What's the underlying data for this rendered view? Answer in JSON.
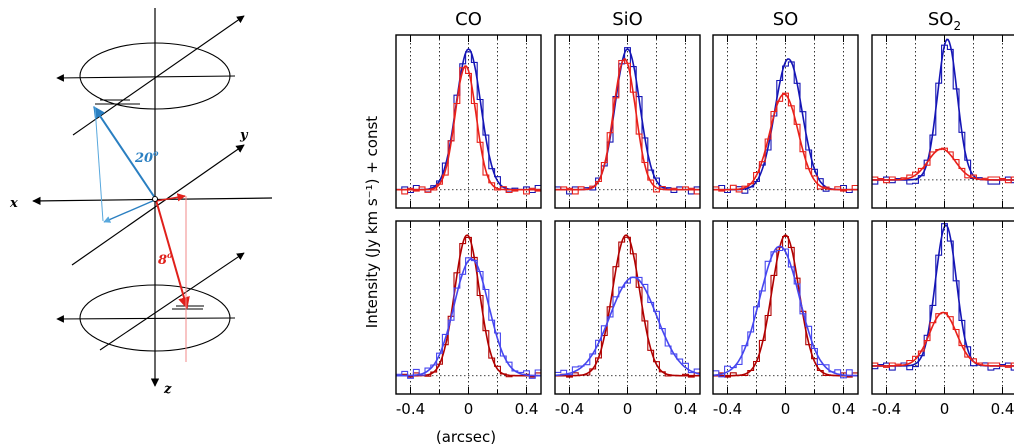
{
  "diagram": {
    "axes": {
      "x": "x",
      "y": "y",
      "z": "z"
    },
    "angles": {
      "upper": "20",
      "lower": "8",
      "unit": "o"
    },
    "colors": {
      "upper": "#2a7fc1",
      "upper_light": "#58a8dd",
      "lower": "#e0201b",
      "lower_light": "#f08a88"
    }
  },
  "chart_data": {
    "type": "line",
    "columns": [
      {
        "label": "CO",
        "sub": ""
      },
      {
        "label": "SiO",
        "sub": ""
      },
      {
        "label": "SO",
        "sub": ""
      },
      {
        "label": "SO",
        "sub": "2"
      }
    ],
    "ylabel": "Intensity (Jy km s⁻¹) + const",
    "xlabel": "(arcsec)",
    "xlim": [
      -0.5,
      0.5
    ],
    "x_ticks": [
      -0.4,
      0,
      0.4
    ],
    "x_tick_labels": [
      "-0.4",
      "0",
      "0.4"
    ],
    "x_gridlines": [
      -0.4,
      -0.2,
      0,
      0.2,
      0.4
    ],
    "ylim": [
      -0.08,
      1.15
    ],
    "grid": "dotted vertical",
    "colors": {
      "blue": "#1515b5",
      "blue_light": "#4646ef",
      "red": "#e8201a",
      "darkred": "#b00000"
    },
    "panels": [
      {
        "row": 0,
        "col": 0,
        "baseline": 0.05,
        "series": [
          {
            "color": "blue",
            "amp": 1.0,
            "center": 0.0,
            "fwhm": 0.2,
            "hist_offset": 0.0,
            "hist_noise": [
              0.0,
              0.02,
              -0.02,
              0.03,
              0.0,
              -0.02,
              0.01
            ]
          },
          {
            "color": "red",
            "amp": 0.88,
            "center": -0.02,
            "fwhm": 0.17,
            "hist_offset": -0.01,
            "hist_noise": [
              0.01,
              -0.02,
              0.02,
              0.0,
              0.03,
              -0.01,
              0.0
            ]
          }
        ]
      },
      {
        "row": 0,
        "col": 1,
        "baseline": 0.05,
        "series": [
          {
            "color": "blue",
            "amp": 1.0,
            "center": 0.0,
            "fwhm": 0.2,
            "hist_offset": 0.0,
            "hist_noise": [
              0.02,
              0.0,
              -0.03,
              0.02,
              0.0,
              0.01,
              -0.02
            ]
          },
          {
            "color": "red",
            "amp": 0.93,
            "center": -0.02,
            "fwhm": 0.18,
            "hist_offset": 0.0,
            "hist_noise": [
              0.0,
              0.02,
              0.01,
              -0.03,
              0.02,
              0.0,
              0.01
            ]
          }
        ]
      },
      {
        "row": 0,
        "col": 2,
        "baseline": 0.05,
        "series": [
          {
            "color": "blue",
            "amp": 0.93,
            "center": 0.02,
            "fwhm": 0.22,
            "hist_offset": 0.0,
            "hist_noise": [
              0.0,
              0.03,
              -0.02,
              0.0,
              0.02,
              -0.03,
              0.0
            ]
          },
          {
            "color": "red",
            "amp": 0.68,
            "center": -0.01,
            "fwhm": 0.23,
            "hist_offset": 0.0,
            "hist_noise": [
              0.02,
              -0.01,
              0.0,
              0.03,
              -0.02,
              0.01,
              0.0
            ]
          }
        ]
      },
      {
        "row": 0,
        "col": 3,
        "baseline": 0.12,
        "series": [
          {
            "color": "blue",
            "amp": 1.0,
            "center": 0.02,
            "fwhm": 0.16,
            "hist_offset": 0.0,
            "hist_noise": [
              -0.03,
              0.0,
              0.02,
              -0.02,
              0.01,
              0.0,
              -0.03
            ]
          },
          {
            "color": "red",
            "amp": 0.22,
            "center": -0.02,
            "fwhm": 0.22,
            "hist_offset": 0.0,
            "hist_noise": [
              0.02,
              0.01,
              -0.02,
              0.02,
              0.0,
              0.01,
              0.02
            ]
          }
        ]
      },
      {
        "row": 1,
        "col": 0,
        "baseline": 0.05,
        "series": [
          {
            "color": "darkred",
            "amp": 1.0,
            "center": -0.01,
            "fwhm": 0.2,
            "hist_offset": 0.0,
            "hist_noise": [
              0.0,
              0.01,
              -0.01,
              0.02,
              0.0,
              -0.01,
              0.0
            ]
          },
          {
            "color": "blue_light",
            "amp": 0.83,
            "center": 0.02,
            "fwhm": 0.28,
            "hist_offset": 0.0,
            "hist_noise": [
              0.01,
              0.03,
              -0.02,
              0.04,
              -0.01,
              0.02,
              0.0
            ]
          }
        ]
      },
      {
        "row": 1,
        "col": 1,
        "baseline": 0.05,
        "series": [
          {
            "color": "darkred",
            "amp": 1.0,
            "center": -0.01,
            "fwhm": 0.22,
            "hist_offset": 0.0,
            "hist_noise": [
              0.0,
              0.01,
              -0.01,
              0.02,
              0.0,
              -0.01,
              0.0
            ]
          },
          {
            "color": "blue_light",
            "amp": 0.7,
            "center": 0.04,
            "fwhm": 0.38,
            "hist_offset": 0.0,
            "hist_noise": [
              0.02,
              0.03,
              -0.01,
              0.03,
              0.01,
              -0.02,
              0.0
            ]
          }
        ]
      },
      {
        "row": 1,
        "col": 2,
        "baseline": 0.05,
        "series": [
          {
            "color": "darkred",
            "amp": 1.0,
            "center": 0.0,
            "fwhm": 0.22,
            "hist_offset": 0.0,
            "hist_noise": [
              0.0,
              0.02,
              -0.01,
              0.02,
              0.0,
              -0.01,
              0.0
            ]
          },
          {
            "color": "blue_light",
            "amp": 0.92,
            "center": -0.04,
            "fwhm": 0.32,
            "hist_offset": 0.0,
            "hist_noise": [
              0.03,
              -0.02,
              0.04,
              0.0,
              -0.03,
              0.02,
              0.0
            ]
          }
        ]
      },
      {
        "row": 1,
        "col": 3,
        "baseline": 0.12,
        "series": [
          {
            "color": "blue",
            "amp": 1.0,
            "center": 0.01,
            "fwhm": 0.17,
            "hist_offset": 0.0,
            "hist_noise": [
              -0.02,
              0.01,
              0.02,
              -0.03,
              0.0,
              0.02,
              -0.03
            ]
          },
          {
            "color": "red",
            "amp": 0.38,
            "center": -0.01,
            "fwhm": 0.22,
            "hist_offset": 0.0,
            "hist_noise": [
              0.02,
              0.0,
              -0.01,
              0.02,
              0.01,
              0.0,
              0.02
            ]
          }
        ]
      }
    ]
  }
}
